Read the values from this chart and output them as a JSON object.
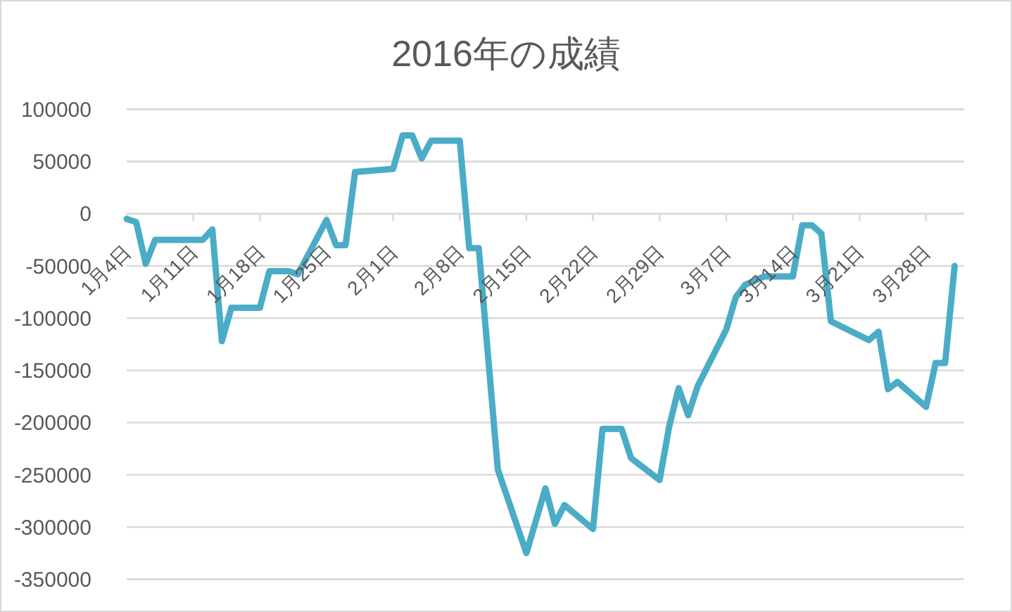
{
  "chart_data": {
    "type": "line",
    "title": "2016年の成績",
    "x": [
      "2016-01-04",
      "2016-01-05",
      "2016-01-06",
      "2016-01-07",
      "2016-01-12",
      "2016-01-13",
      "2016-01-14",
      "2016-01-15",
      "2016-01-18",
      "2016-01-19",
      "2016-01-21",
      "2016-01-22",
      "2016-01-25",
      "2016-01-26",
      "2016-01-27",
      "2016-01-28",
      "2016-02-01",
      "2016-02-02",
      "2016-02-03",
      "2016-02-04",
      "2016-02-05",
      "2016-02-08",
      "2016-02-09",
      "2016-02-10",
      "2016-02-12",
      "2016-02-15",
      "2016-02-17",
      "2016-02-18",
      "2016-02-19",
      "2016-02-22",
      "2016-02-23",
      "2016-02-25",
      "2016-02-26",
      "2016-02-29",
      "2016-03-01",
      "2016-03-02",
      "2016-03-03",
      "2016-03-04",
      "2016-03-07",
      "2016-03-08",
      "2016-03-09",
      "2016-03-11",
      "2016-03-14",
      "2016-03-15",
      "2016-03-16",
      "2016-03-17",
      "2016-03-18",
      "2016-03-22",
      "2016-03-23",
      "2016-03-24",
      "2016-03-25",
      "2016-03-28",
      "2016-03-29",
      "2016-03-30",
      "2016-03-31"
    ],
    "series": [
      {
        "color": "#4bacc6",
        "values": [
          -5000,
          -8000,
          -48000,
          -25000,
          -25000,
          -15000,
          -122000,
          -90000,
          -90000,
          -55000,
          -55000,
          -58000,
          -6000,
          -30000,
          -30000,
          40000,
          43000,
          75000,
          75000,
          53000,
          70000,
          70000,
          -33000,
          -33000,
          -245000,
          -325000,
          -263000,
          -297000,
          -279000,
          -302000,
          -206000,
          -206000,
          -234000,
          -255000,
          -204000,
          -167000,
          -193000,
          -165000,
          -111000,
          -80000,
          -68000,
          -60000,
          -60000,
          -11000,
          -11000,
          -19000,
          -103000,
          -121000,
          -113000,
          -168000,
          -161000,
          -185000,
          -143000,
          -143000,
          -50000
        ]
      }
    ],
    "xlim": [
      "2016-01-04",
      "2016-04-01"
    ],
    "xticks": [
      {
        "value": "2016-01-04",
        "label": "1月4日"
      },
      {
        "value": "2016-01-11",
        "label": "1月11日"
      },
      {
        "value": "2016-01-18",
        "label": "1月18日"
      },
      {
        "value": "2016-01-25",
        "label": "1月25日"
      },
      {
        "value": "2016-02-01",
        "label": "2月1日"
      },
      {
        "value": "2016-02-08",
        "label": "2月8日"
      },
      {
        "value": "2016-02-15",
        "label": "2月15日"
      },
      {
        "value": "2016-02-22",
        "label": "2月22日"
      },
      {
        "value": "2016-02-29",
        "label": "2月29日"
      },
      {
        "value": "2016-03-07",
        "label": "3月7日"
      },
      {
        "value": "2016-03-14",
        "label": "3月14日"
      },
      {
        "value": "2016-03-21",
        "label": "3月21日"
      },
      {
        "value": "2016-03-28",
        "label": "3月28日"
      }
    ],
    "ylim": [
      -350000,
      100000
    ],
    "yticks": [
      -350000,
      -300000,
      -250000,
      -200000,
      -150000,
      -100000,
      -50000,
      0,
      50000,
      100000
    ],
    "grid": "y",
    "line_style": "solid"
  }
}
